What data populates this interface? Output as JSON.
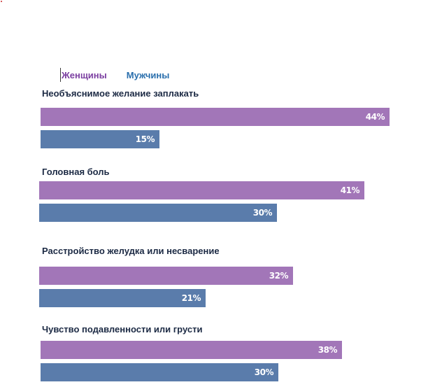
{
  "chart_data": {
    "type": "bar",
    "orientation": "horizontal",
    "categories": [
      "Необъяснимое желание заплакать",
      "Головная боль",
      "Расстройство желудка или несварение",
      "Чувство подавленности или грусти"
    ],
    "series": [
      {
        "name": "Женщины",
        "values": [
          44,
          41,
          32,
          38
        ],
        "labels": [
          "44%",
          "41%",
          "32%",
          "38%"
        ],
        "color": "#a276b8"
      },
      {
        "name": "Мужчины",
        "values": [
          15,
          30,
          21,
          30
        ],
        "labels": [
          "15%",
          "30%",
          "21%",
          "30%"
        ],
        "color": "#5a7cab"
      }
    ],
    "unit": "%",
    "xlim": [
      0,
      44
    ],
    "grid": false,
    "legend_position": "top-left"
  },
  "legend": {
    "women": "Женщины",
    "men": "Мужчины"
  }
}
